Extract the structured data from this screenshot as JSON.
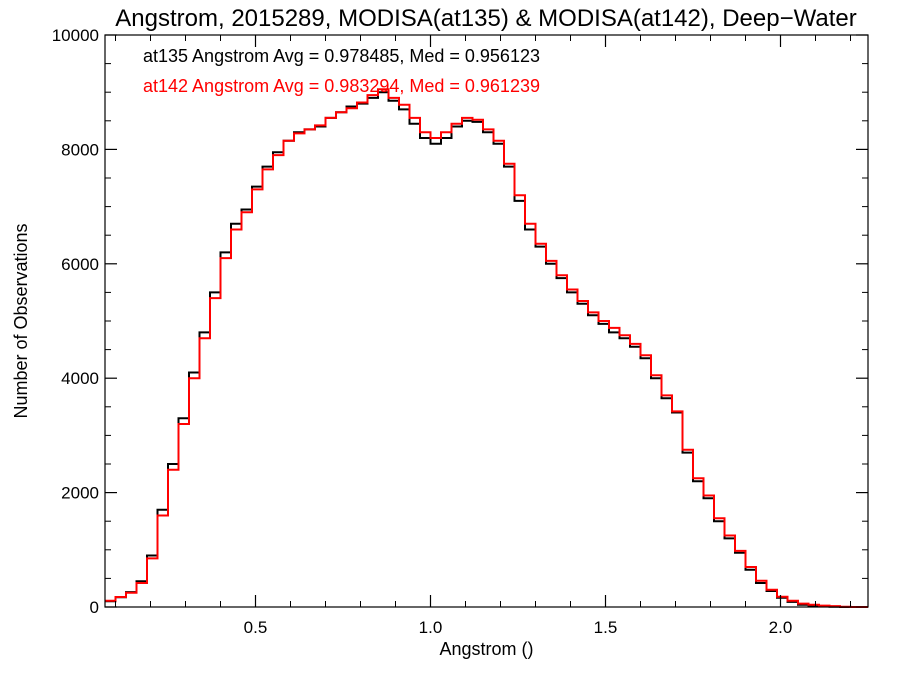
{
  "chart_data": {
    "type": "line",
    "title": "Angstrom, 2015289, MODISA(at135) & MODISA(at142), Deep−Water",
    "xlabel": "Angstrom ()",
    "ylabel": "Number of Observations",
    "xlim": [
      0.07,
      2.25
    ],
    "ylim": [
      0,
      10000
    ],
    "grid": false,
    "xticks": [
      0.5,
      1.0,
      1.5,
      2.0
    ],
    "xtick_labels": [
      "0.5",
      "1.0",
      "1.5",
      "2.0"
    ],
    "yticks": [
      0,
      2000,
      4000,
      6000,
      8000,
      10000
    ],
    "ytick_labels": [
      "0",
      "2000",
      "4000",
      "6000",
      "8000",
      "10000"
    ],
    "annotations": [
      {
        "text": "at135 Angstrom Avg = 0.978485, Med = 0.956123",
        "color": "#000000"
      },
      {
        "text": "at142 Angstrom Avg = 0.983294, Med = 0.961239",
        "color": "#ff0000"
      }
    ],
    "series": [
      {
        "color": "#000000",
        "style": "step",
        "x": [
          0.07,
          0.1,
          0.13,
          0.16,
          0.19,
          0.22,
          0.25,
          0.28,
          0.31,
          0.34,
          0.37,
          0.4,
          0.43,
          0.46,
          0.49,
          0.52,
          0.55,
          0.58,
          0.61,
          0.64,
          0.67,
          0.7,
          0.73,
          0.76,
          0.79,
          0.82,
          0.85,
          0.88,
          0.91,
          0.94,
          0.97,
          1.0,
          1.03,
          1.06,
          1.09,
          1.12,
          1.15,
          1.18,
          1.21,
          1.24,
          1.27,
          1.3,
          1.33,
          1.36,
          1.39,
          1.42,
          1.45,
          1.48,
          1.51,
          1.54,
          1.57,
          1.6,
          1.63,
          1.66,
          1.69,
          1.72,
          1.75,
          1.78,
          1.81,
          1.84,
          1.87,
          1.9,
          1.93,
          1.96,
          1.99,
          2.02,
          2.05,
          2.08,
          2.11,
          2.14,
          2.17,
          2.2,
          2.25
        ],
        "values": [
          100,
          170,
          260,
          450,
          900,
          1700,
          2500,
          3300,
          4100,
          4800,
          5500,
          6200,
          6700,
          6950,
          7350,
          7700,
          7950,
          8150,
          8300,
          8350,
          8400,
          8550,
          8650,
          8750,
          8800,
          8900,
          9000,
          8850,
          8700,
          8450,
          8200,
          8100,
          8200,
          8400,
          8500,
          8480,
          8300,
          8100,
          7700,
          7100,
          6600,
          6300,
          6000,
          5750,
          5500,
          5300,
          5100,
          4950,
          4800,
          4700,
          4550,
          4350,
          4000,
          3650,
          3400,
          2700,
          2200,
          1900,
          1500,
          1200,
          950,
          650,
          420,
          280,
          160,
          90,
          40,
          20,
          10,
          5,
          0,
          0,
          0
        ]
      },
      {
        "color": "#ff0000",
        "style": "step",
        "x": [
          0.07,
          0.1,
          0.13,
          0.16,
          0.19,
          0.22,
          0.25,
          0.28,
          0.31,
          0.34,
          0.37,
          0.4,
          0.43,
          0.46,
          0.49,
          0.52,
          0.55,
          0.58,
          0.61,
          0.64,
          0.67,
          0.7,
          0.73,
          0.76,
          0.79,
          0.82,
          0.85,
          0.88,
          0.91,
          0.94,
          0.97,
          1.0,
          1.03,
          1.06,
          1.09,
          1.12,
          1.15,
          1.18,
          1.21,
          1.24,
          1.27,
          1.3,
          1.33,
          1.36,
          1.39,
          1.42,
          1.45,
          1.48,
          1.51,
          1.54,
          1.57,
          1.6,
          1.63,
          1.66,
          1.69,
          1.72,
          1.75,
          1.78,
          1.81,
          1.84,
          1.87,
          1.9,
          1.93,
          1.96,
          1.99,
          2.02,
          2.05,
          2.08,
          2.11,
          2.14,
          2.17,
          2.2,
          2.25
        ],
        "values": [
          110,
          175,
          250,
          420,
          850,
          1600,
          2400,
          3200,
          4000,
          4700,
          5400,
          6100,
          6600,
          6900,
          7300,
          7650,
          7900,
          8150,
          8280,
          8350,
          8420,
          8550,
          8650,
          8720,
          8820,
          8950,
          9050,
          8900,
          8780,
          8550,
          8300,
          8200,
          8300,
          8450,
          8550,
          8520,
          8350,
          8150,
          7750,
          7200,
          6700,
          6350,
          6050,
          5800,
          5550,
          5350,
          5150,
          5000,
          4880,
          4750,
          4600,
          4400,
          4050,
          3700,
          3420,
          2750,
          2250,
          1950,
          1550,
          1250,
          980,
          700,
          460,
          300,
          180,
          110,
          60,
          40,
          25,
          15,
          5,
          0,
          0
        ]
      }
    ]
  }
}
